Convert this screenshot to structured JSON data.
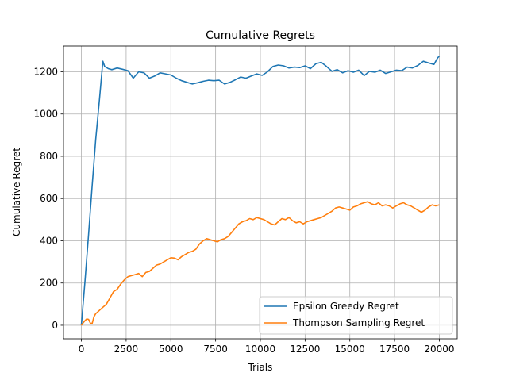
{
  "chart_data": {
    "type": "line",
    "title": "Cumulative Regrets",
    "xlabel": "Trials",
    "ylabel": "Cumulative Regret",
    "xlim": [
      -1000,
      21000
    ],
    "ylim": [
      -64,
      1322
    ],
    "xticks": [
      0,
      2500,
      5000,
      7500,
      10000,
      12500,
      15000,
      17500,
      20000
    ],
    "yticks": [
      0,
      200,
      400,
      600,
      800,
      1000,
      1200
    ],
    "grid": true,
    "legend_position": "lower-right",
    "series": [
      {
        "name": "Epsilon Greedy Regret",
        "color": "#1f77b4",
        "x": [
          0,
          200,
          400,
          600,
          800,
          1000,
          1200,
          1300,
          1500,
          1700,
          2000,
          2300,
          2600,
          2900,
          3200,
          3500,
          3800,
          4100,
          4400,
          4700,
          5000,
          5300,
          5600,
          5900,
          6200,
          6500,
          6800,
          7100,
          7400,
          7700,
          8000,
          8300,
          8600,
          8900,
          9200,
          9500,
          9800,
          10100,
          10400,
          10700,
          11000,
          11300,
          11600,
          11900,
          12200,
          12500,
          12800,
          13100,
          13400,
          13700,
          14000,
          14300,
          14600,
          14900,
          15200,
          15500,
          15800,
          16100,
          16400,
          16700,
          17000,
          17300,
          17600,
          17900,
          18200,
          18500,
          18800,
          19100,
          19400,
          19700,
          19900,
          20000
        ],
        "y": [
          0,
          210,
          430,
          660,
          880,
          1060,
          1250,
          1225,
          1215,
          1210,
          1218,
          1212,
          1205,
          1170,
          1200,
          1195,
          1170,
          1180,
          1195,
          1190,
          1185,
          1170,
          1158,
          1150,
          1142,
          1148,
          1155,
          1160,
          1158,
          1160,
          1142,
          1150,
          1162,
          1175,
          1170,
          1180,
          1190,
          1183,
          1200,
          1225,
          1232,
          1228,
          1218,
          1222,
          1220,
          1228,
          1215,
          1238,
          1245,
          1225,
          1202,
          1210,
          1195,
          1205,
          1198,
          1208,
          1182,
          1202,
          1198,
          1208,
          1192,
          1200,
          1208,
          1205,
          1222,
          1218,
          1230,
          1250,
          1242,
          1235,
          1265,
          1275
        ]
      },
      {
        "name": "Thompson Sampling Regret",
        "color": "#ff7f0e",
        "x": [
          0,
          100,
          200,
          300,
          400,
          500,
          600,
          700,
          800,
          900,
          1000,
          1200,
          1400,
          1600,
          1800,
          2000,
          2200,
          2400,
          2600,
          2800,
          3000,
          3200,
          3400,
          3600,
          3800,
          4000,
          4200,
          4400,
          4600,
          4800,
          5000,
          5200,
          5400,
          5600,
          5800,
          6000,
          6200,
          6400,
          6600,
          6800,
          7000,
          7200,
          7400,
          7600,
          7800,
          8000,
          8200,
          8400,
          8600,
          8800,
          9000,
          9200,
          9400,
          9600,
          9800,
          10000,
          10200,
          10400,
          10600,
          10800,
          11000,
          11200,
          11400,
          11600,
          11800,
          12000,
          12200,
          12400,
          12600,
          12800,
          13000,
          13200,
          13400,
          13600,
          13800,
          14000,
          14200,
          14400,
          14600,
          14800,
          15000,
          15200,
          15400,
          15600,
          15800,
          16000,
          16200,
          16400,
          16600,
          16800,
          17000,
          17200,
          17400,
          17600,
          17800,
          18000,
          18200,
          18400,
          18600,
          18800,
          19000,
          19200,
          19400,
          19600,
          19800,
          20000
        ],
        "y": [
          0,
          12,
          22,
          30,
          28,
          10,
          8,
          40,
          55,
          62,
          70,
          85,
          100,
          130,
          160,
          170,
          195,
          215,
          230,
          235,
          240,
          245,
          230,
          250,
          255,
          270,
          285,
          290,
          300,
          310,
          320,
          318,
          310,
          325,
          335,
          345,
          350,
          360,
          385,
          400,
          410,
          405,
          400,
          395,
          405,
          410,
          420,
          440,
          460,
          480,
          490,
          495,
          505,
          500,
          510,
          505,
          500,
          490,
          480,
          475,
          490,
          505,
          500,
          510,
          495,
          485,
          490,
          480,
          490,
          495,
          500,
          505,
          510,
          520,
          530,
          540,
          555,
          560,
          555,
          550,
          545,
          560,
          565,
          575,
          580,
          585,
          575,
          570,
          580,
          565,
          570,
          565,
          555,
          565,
          575,
          580,
          570,
          565,
          555,
          545,
          535,
          545,
          560,
          570,
          565,
          570
        ]
      }
    ]
  }
}
